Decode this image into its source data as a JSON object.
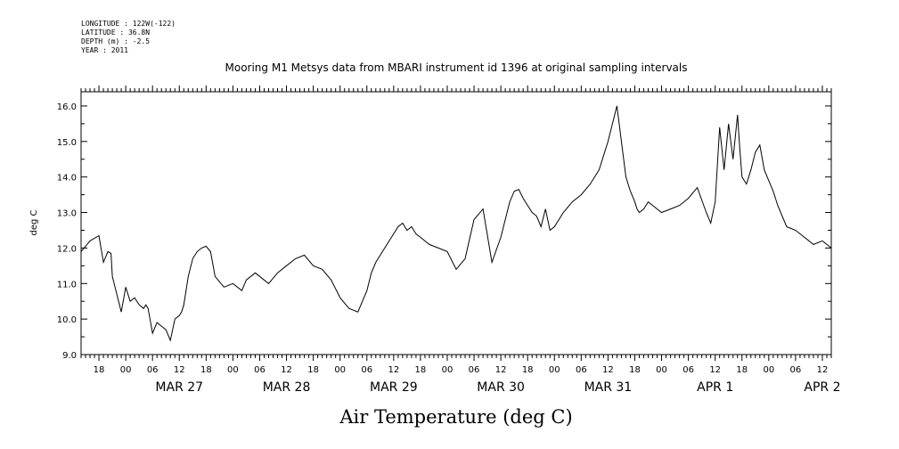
{
  "header": {
    "longitude": "LONGITUDE : 122W(-122)",
    "latitude": "LATITUDE : 36.8N",
    "depth": "DEPTH (m) : -2.5",
    "year": "YEAR : 2011"
  },
  "chart_data": {
    "type": "line",
    "title": "Mooring M1 Metsys data from MBARI instrument id 1396 at original sampling intervals",
    "xlabel": "Air Temperature (deg C)",
    "ylabel": "deg C",
    "ylim": [
      9.0,
      16.4
    ],
    "xlim_hours": [
      -10,
      158
    ],
    "y_ticks": [
      "9.0",
      "10.0",
      "11.0",
      "12.0",
      "13.0",
      "14.0",
      "15.0",
      "16.0"
    ],
    "hour_ticks": [
      "00",
      "06",
      "12",
      "18"
    ],
    "days": [
      "MAR 27",
      "MAR 28",
      "MAR 29",
      "MAR 30",
      "MAR 31",
      "APR 1",
      "APR 2"
    ],
    "grid": false,
    "series": [
      {
        "x": [
          -10,
          -8,
          -6,
          -5,
          -4,
          -3.3,
          -3,
          -2,
          -1,
          0,
          1,
          2,
          3,
          4,
          4.5,
          5,
          6,
          7,
          8,
          9,
          10,
          11,
          12,
          12.5,
          13,
          14,
          15,
          16,
          17,
          18,
          19,
          20,
          22,
          24,
          26,
          27,
          28,
          29,
          30,
          31,
          32,
          34,
          36,
          38,
          40,
          42,
          44,
          46,
          48,
          50,
          52,
          54,
          55,
          56,
          57,
          58,
          59,
          60,
          61,
          62,
          63,
          64,
          65,
          66,
          68,
          70,
          72,
          74,
          76,
          78,
          80,
          82,
          84,
          86,
          87,
          88,
          89,
          90,
          91,
          92,
          93,
          94,
          95,
          96,
          98,
          100,
          102,
          104,
          106,
          108,
          110,
          112,
          113,
          114,
          114.5,
          115,
          116,
          117,
          118,
          120,
          122,
          124,
          126,
          128,
          130,
          131,
          132,
          133,
          134,
          135,
          136,
          137,
          137.5,
          138,
          139,
          140,
          141,
          142,
          143,
          144,
          145,
          146,
          148,
          150,
          152,
          154,
          156,
          158
        ],
        "y": [
          11.9,
          12.2,
          12.35,
          11.6,
          11.9,
          11.85,
          11.2,
          10.7,
          10.2,
          10.9,
          10.5,
          10.6,
          10.4,
          10.3,
          10.4,
          10.3,
          9.6,
          9.9,
          9.8,
          9.7,
          9.4,
          10.0,
          10.1,
          10.2,
          10.4,
          11.2,
          11.7,
          11.9,
          12.0,
          12.05,
          11.9,
          11.2,
          10.9,
          11.0,
          10.8,
          11.1,
          11.2,
          11.3,
          11.2,
          11.1,
          11.0,
          11.3,
          11.5,
          11.7,
          11.8,
          11.5,
          11.4,
          11.1,
          10.6,
          10.3,
          10.2,
          10.8,
          11.3,
          11.6,
          11.8,
          12.0,
          12.2,
          12.4,
          12.6,
          12.7,
          12.5,
          12.6,
          12.4,
          12.3,
          12.1,
          12.0,
          11.9,
          11.4,
          11.7,
          12.8,
          13.1,
          11.6,
          12.3,
          13.3,
          13.6,
          13.65,
          13.4,
          13.2,
          13.0,
          12.9,
          12.6,
          13.1,
          12.5,
          12.6,
          13.0,
          13.3,
          13.5,
          13.8,
          14.2,
          15.0,
          16.0,
          14.0,
          13.6,
          13.3,
          13.1,
          13.0,
          13.1,
          13.3,
          13.2,
          13.0,
          13.1,
          13.2,
          13.4,
          13.7,
          13.0,
          12.7,
          13.3,
          15.4,
          14.2,
          15.5,
          14.5,
          15.75,
          14.8,
          14.0,
          13.8,
          14.2,
          14.7,
          14.9,
          14.2,
          13.9,
          13.6,
          13.2,
          12.6,
          12.5,
          12.3,
          12.1,
          12.2,
          12.0
        ]
      }
    ]
  }
}
